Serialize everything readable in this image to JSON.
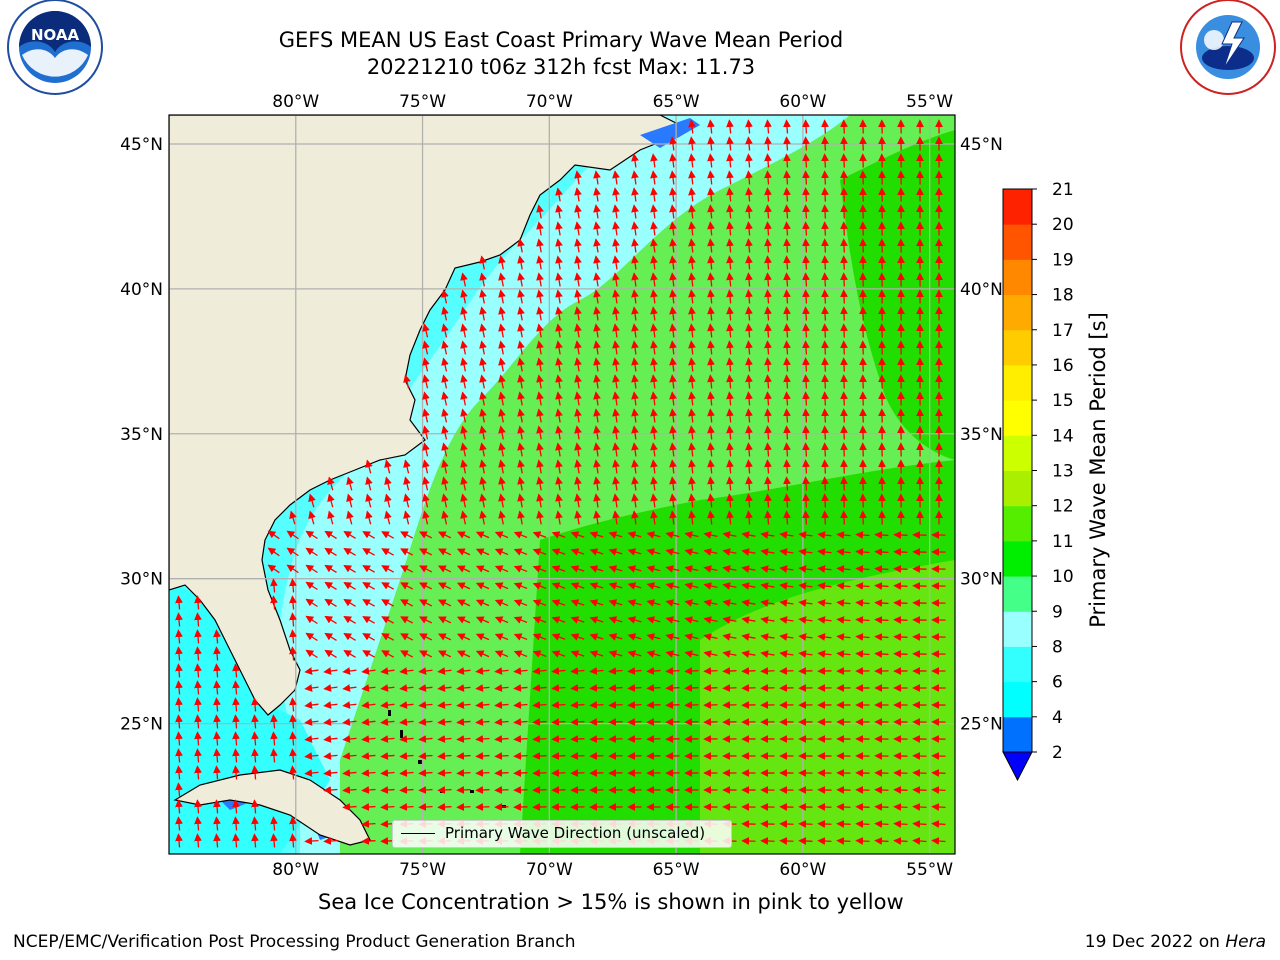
{
  "title_line1": "GEFS MEAN US East Coast Primary Wave Mean Period",
  "title_line2": "20221210 t06z 312h fcst   Max: 11.73",
  "logos": {
    "left": {
      "name": "NOAA",
      "text": "NOAA",
      "ring_text": "NATIONAL OCEANIC AND ATMOSPHERIC ADMINISTRATION · U.S. DEPARTMENT OF COMMERCE"
    },
    "right": {
      "name": "National Weather Service",
      "ring_text": "NATIONAL WEATHER SERVICE"
    }
  },
  "map": {
    "lon_labels": [
      "80°W",
      "75°W",
      "70°W",
      "65°W",
      "60°W",
      "55°W"
    ],
    "lat_labels": [
      "45°N",
      "40°N",
      "35°N",
      "30°N",
      "25°N"
    ],
    "lon_range": [
      -85,
      -54
    ],
    "lat_range": [
      20.5,
      46
    ],
    "land_color": "#efedda",
    "gridline_color": "#b0b0b0",
    "arrow_color": "#ff0000"
  },
  "colorbar": {
    "label": "Primary Wave Mean Period [s]",
    "ticks": [
      "2",
      "4",
      "6",
      "8",
      "9",
      "10",
      "11",
      "12",
      "13",
      "14",
      "15",
      "16",
      "17",
      "18",
      "19",
      "20",
      "21"
    ],
    "colors": [
      "#0070ff",
      "#00ffff",
      "#33ffff",
      "#99ffff",
      "#44ff88",
      "#00ee00",
      "#55ee00",
      "#aaee00",
      "#ccff00",
      "#ffff00",
      "#ffee00",
      "#ffcc00",
      "#ffaa00",
      "#ff8800",
      "#ff5500",
      "#ff2200",
      "#ff0000"
    ],
    "under_color": "#0000ff"
  },
  "legend_label": "Primary Wave Direction (unscaled)",
  "note": "Sea Ice Concentration > 15% is shown in pink to yellow",
  "footer_left": "NCEP/EMC/Verification Post Processing Product Generation Branch",
  "footer_date": "19 Dec 2022 on ",
  "footer_machine": "Hera"
}
